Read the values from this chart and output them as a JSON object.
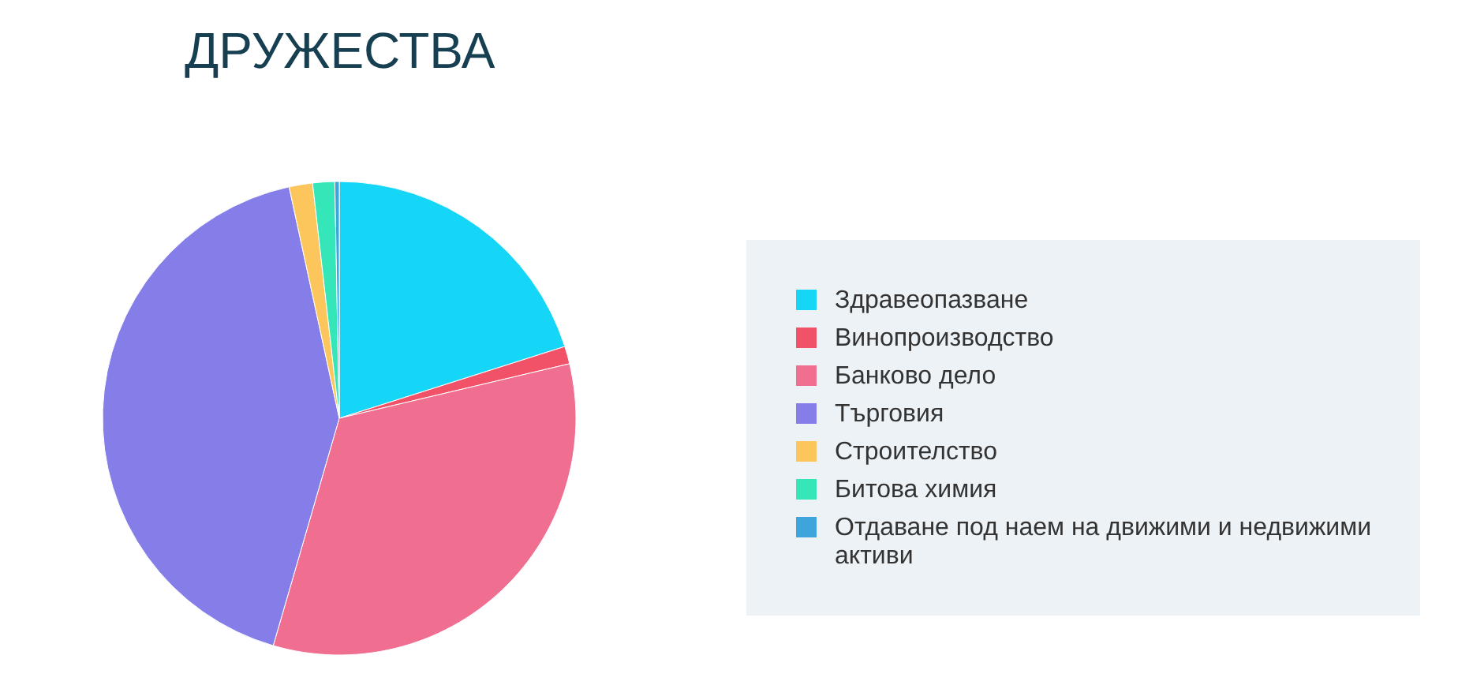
{
  "chart_data": {
    "type": "pie",
    "title": "ДРУЖЕСТВА",
    "categories": [
      "Здравеопазване",
      "Винопроизводство",
      "Банково дело",
      "Търговия",
      "Строителство",
      "Битова химия",
      "Отдаване под наем на движими и недвижими активи"
    ],
    "values": [
      20.1,
      1.2,
      33.2,
      42.1,
      1.6,
      1.5,
      0.3
    ],
    "colors": [
      "#15d6f7",
      "#f25268",
      "#f06f91",
      "#857de8",
      "#fdc65c",
      "#35e6b8",
      "#3ea4dc"
    ],
    "legend": "right"
  }
}
